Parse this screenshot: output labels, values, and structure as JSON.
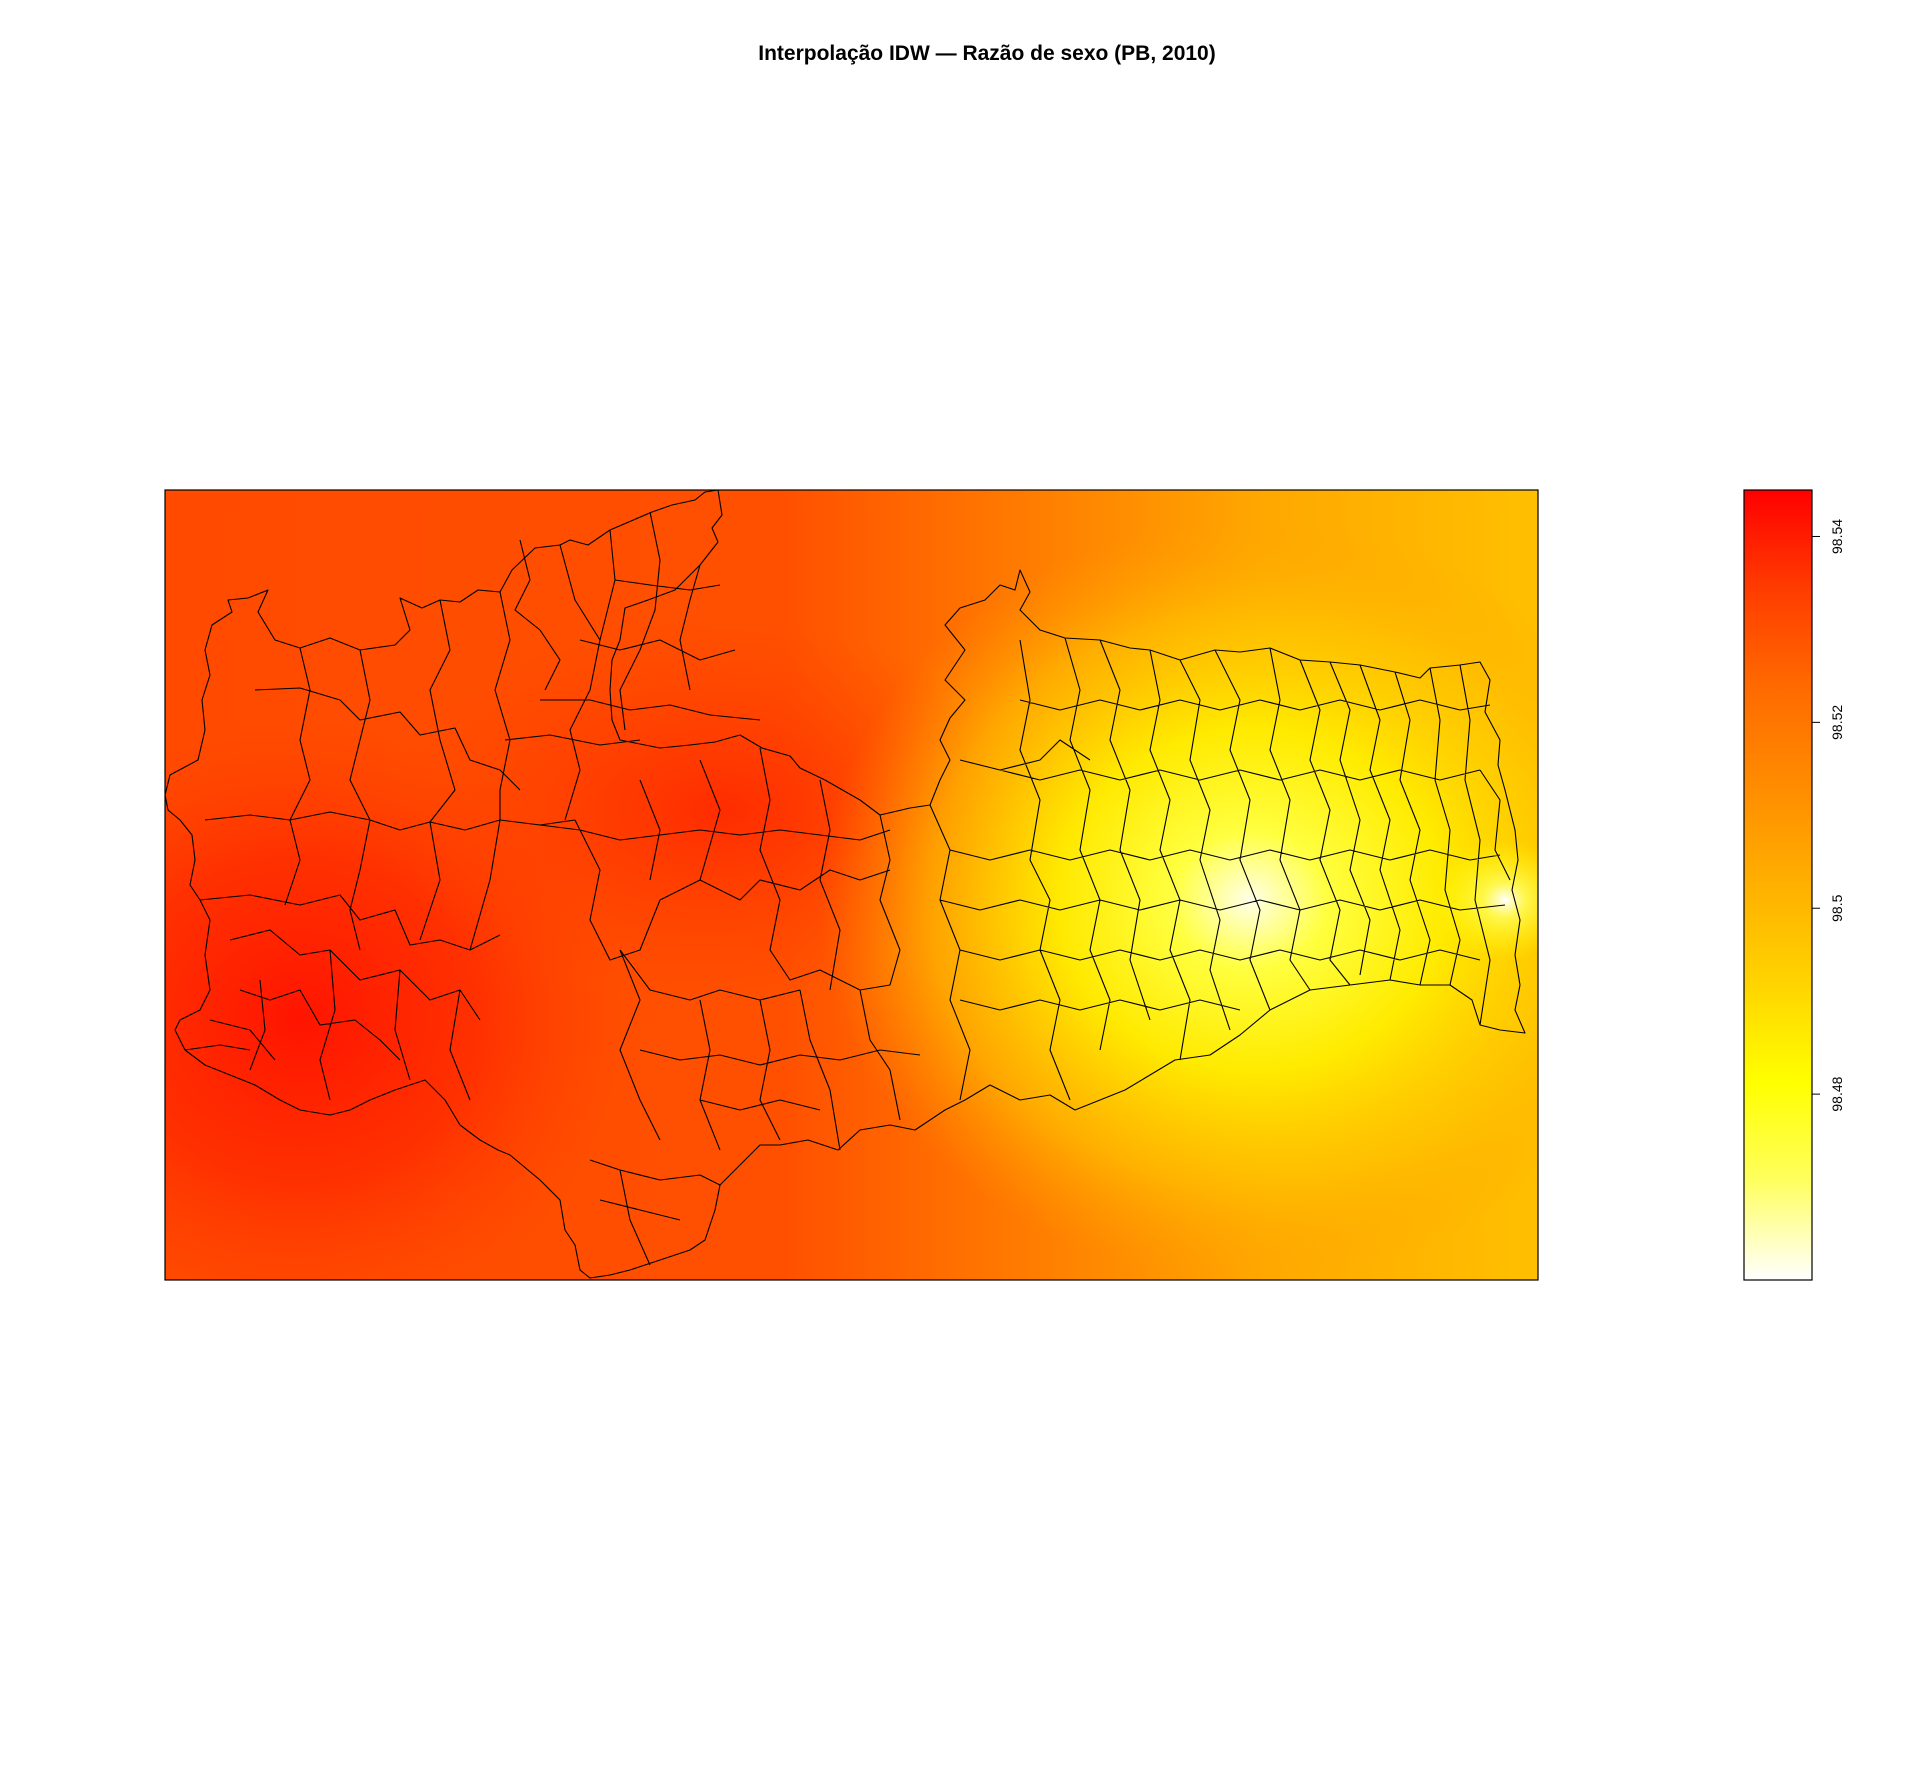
{
  "title": "Interpolação IDW — Razão de sexo (PB, 2010)",
  "map": {
    "kind": "IDW interpolation raster with municipality boundaries",
    "region": "PB",
    "year": "2010",
    "colors": {
      "high": "#FF0000",
      "mid_high": "#FF6A00",
      "mid": "#FFB000",
      "low_mid": "#FFFF00",
      "low": "#FFFFFF",
      "boundary": "#000000",
      "frame": "#000000"
    }
  },
  "legend": {
    "min_value": 98.46,
    "max_value": 98.545,
    "ticks": [
      {
        "value": 98.54,
        "label": "98.54"
      },
      {
        "value": 98.52,
        "label": "98.52"
      },
      {
        "value": 98.5,
        "label": "98.5"
      },
      {
        "value": 98.48,
        "label": "98.48"
      }
    ],
    "colors": [
      "#FFFFFF",
      "#FFFF60",
      "#FFFF00",
      "#FFD400",
      "#FFB000",
      "#FF8C00",
      "#FF6A00",
      "#FF3C00",
      "#FF0000"
    ]
  }
}
